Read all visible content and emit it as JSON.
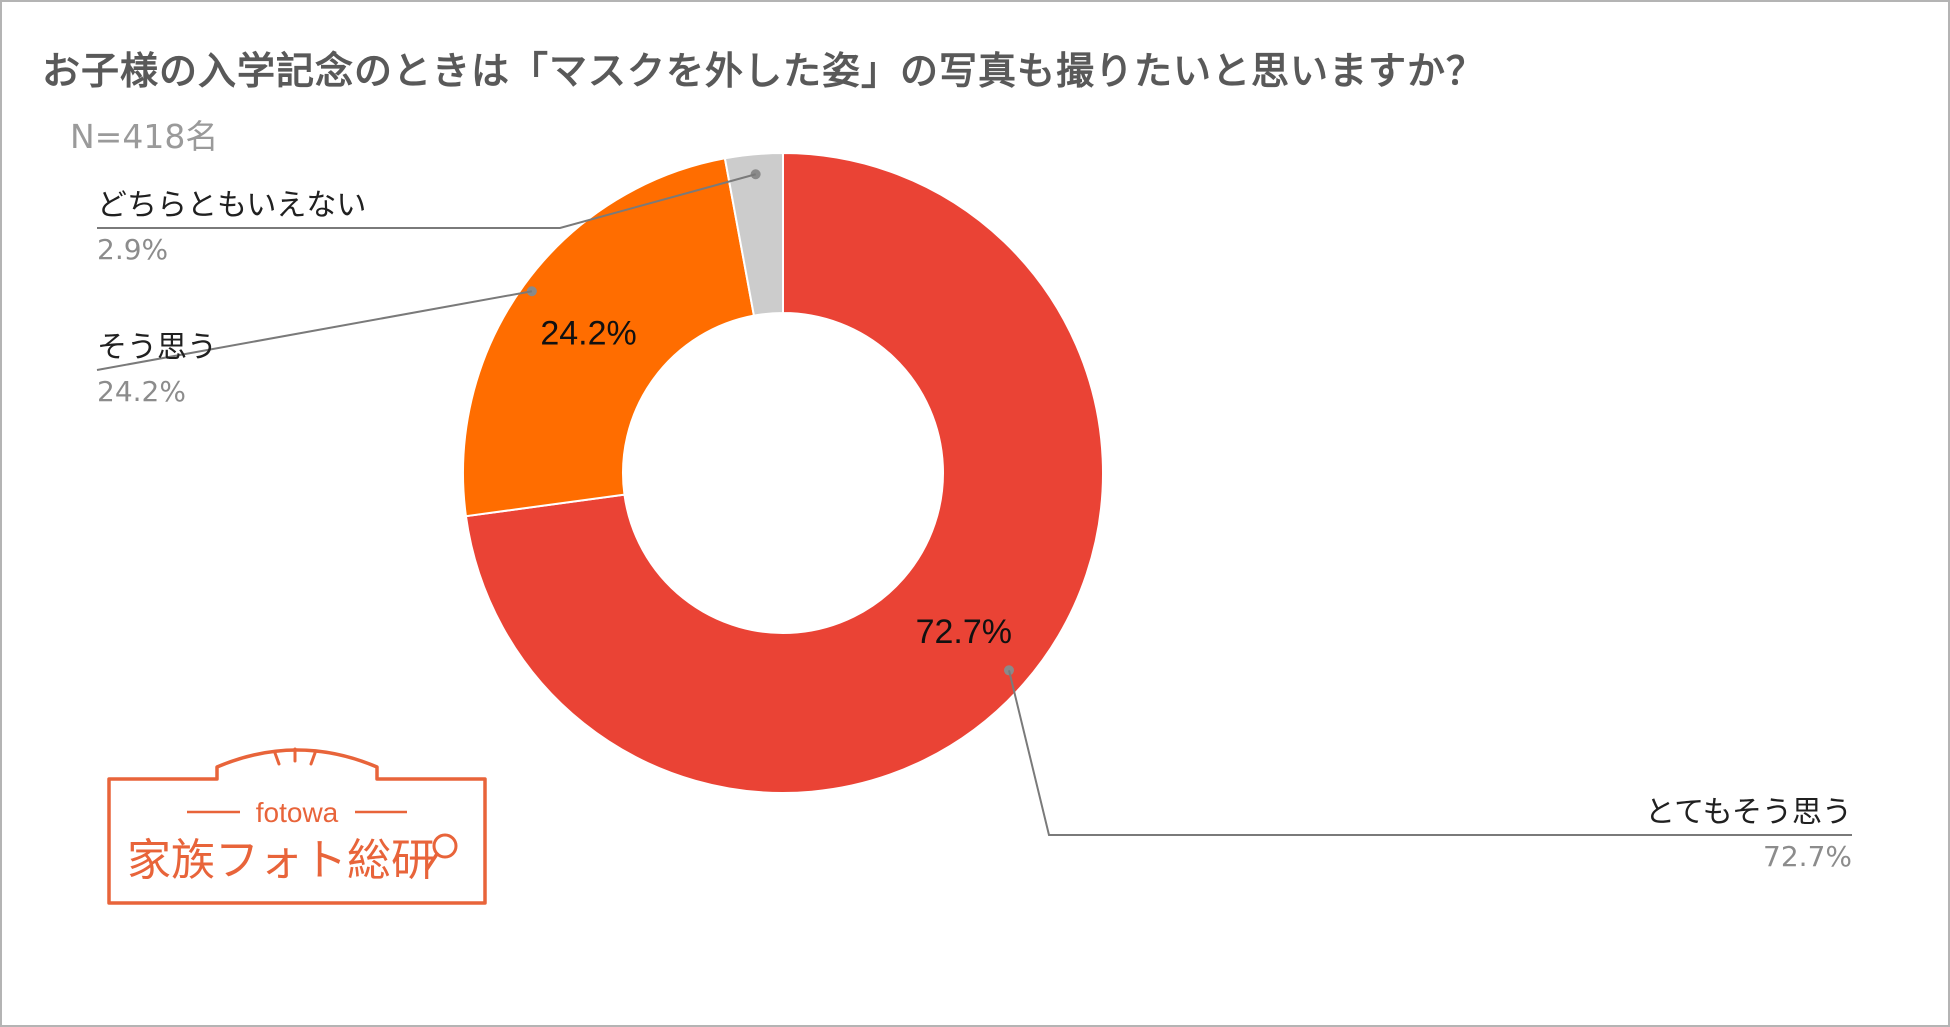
{
  "header": {
    "title": "お子様の入学記念のときは「マスクを外した姿」の写真も撮りたいと思いますか？",
    "sample": "N=418名"
  },
  "chart_data": {
    "type": "pie",
    "donut": true,
    "title": "お子様の入学記念のときは「マスクを外した姿」の写真も撮りたいと思いますか？",
    "subtitle": "N=418名",
    "slices": [
      {
        "label": "とてもそう思う",
        "value": 72.7,
        "display": "72.7%",
        "color": "#ea4335",
        "inner_label": "72.7%"
      },
      {
        "label": "そう思う",
        "value": 24.2,
        "display": "24.2%",
        "color": "#ff6d00",
        "inner_label": "24.2%"
      },
      {
        "label": "どちらともいえない",
        "value": 2.9,
        "display": "2.9%",
        "color": "#cccccc",
        "inner_label": ""
      }
    ]
  },
  "logo": {
    "brand": "fotowa",
    "name": "家族フォト総研",
    "color": "#e8643a"
  }
}
